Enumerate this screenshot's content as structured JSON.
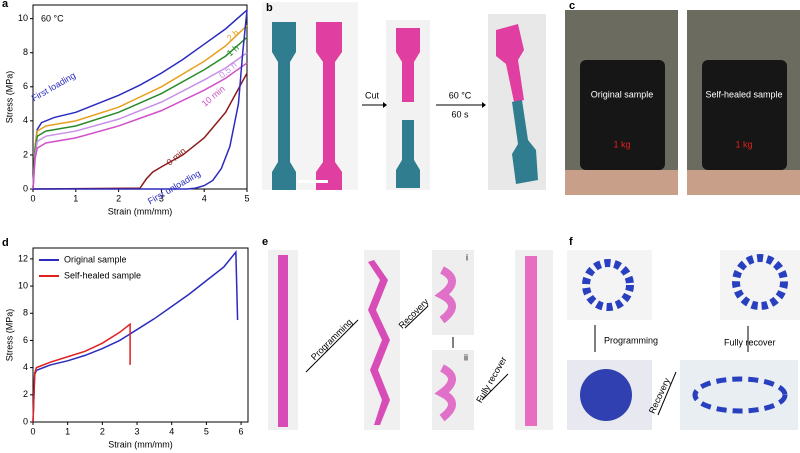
{
  "chart_data": [
    {
      "type": "line",
      "panel": "a",
      "annotation": "60 °C",
      "xlabel": "Strain (mm/mm)",
      "ylabel": "Stress (MPa)",
      "xlim": [
        0,
        5
      ],
      "ylim": [
        0,
        10.8
      ],
      "xticks": [
        0,
        1,
        2,
        3,
        4,
        5
      ],
      "yticks": [
        0,
        2,
        4,
        6,
        8,
        10
      ],
      "series": [
        {
          "name": "First loading",
          "color": "#2b2bbf",
          "x": [
            0,
            0.05,
            0.1,
            0.2,
            0.5,
            1,
            1.5,
            2,
            2.5,
            3,
            3.5,
            4,
            4.5,
            5
          ],
          "values": [
            0,
            2.5,
            3.5,
            3.9,
            4.2,
            4.5,
            5,
            5.5,
            6.1,
            6.8,
            7.6,
            8.5,
            9.4,
            10.5
          ]
        },
        {
          "name": "2 h",
          "color": "#e8a020",
          "x": [
            0,
            0.05,
            0.1,
            0.3,
            1,
            2,
            3,
            4,
            4.5,
            5
          ],
          "values": [
            0,
            2.5,
            3.4,
            3.7,
            4,
            4.8,
            6,
            7.5,
            8.4,
            9.6
          ]
        },
        {
          "name": "1 h",
          "color": "#2a8a2a",
          "x": [
            0,
            0.05,
            0.1,
            0.3,
            1,
            2,
            3,
            4,
            4.5,
            5
          ],
          "values": [
            0,
            2.3,
            3.1,
            3.4,
            3.7,
            4.5,
            5.6,
            7,
            7.8,
            8.9
          ]
        },
        {
          "name": "0.5 h",
          "color": "#c890e8",
          "x": [
            0,
            0.05,
            0.1,
            0.3,
            1,
            2,
            3,
            4,
            4.5,
            5
          ],
          "values": [
            0,
            2,
            2.8,
            3.1,
            3.4,
            4.1,
            5.1,
            6.4,
            7.1,
            8
          ]
        },
        {
          "name": "10 min",
          "color": "#d050c8",
          "x": [
            0,
            0.05,
            0.1,
            0.3,
            1,
            2,
            3,
            4,
            4.5,
            5
          ],
          "values": [
            0,
            1.8,
            2.4,
            2.7,
            3,
            3.7,
            4.6,
            5.8,
            6.5,
            7.4
          ]
        },
        {
          "name": "0 min",
          "color": "#8b1a1a",
          "x": [
            0,
            2.5,
            2.65,
            2.8,
            3,
            3.5,
            4,
            4.5,
            5
          ],
          "values": [
            0,
            0.05,
            0.6,
            1,
            1.3,
            2,
            3,
            4.5,
            6.8
          ]
        },
        {
          "name": "First unloading",
          "color": "#2b2bbf",
          "x": [
            5,
            4.9,
            4.8,
            4.6,
            4.4,
            4.2,
            4,
            3.8,
            3.6,
            3.5,
            0
          ],
          "values": [
            10.5,
            8,
            5,
            2.5,
            1.2,
            0.5,
            0.2,
            0.05,
            0,
            0,
            0
          ]
        }
      ]
    },
    {
      "type": "line",
      "panel": "d",
      "xlabel": "Strain (mm/mm)",
      "ylabel": "Stress (MPa)",
      "legend": "upper left",
      "xlim": [
        0,
        6.2
      ],
      "ylim": [
        0,
        12.8
      ],
      "xticks": [
        0,
        1,
        2,
        3,
        4,
        5,
        6
      ],
      "yticks": [
        0,
        2,
        4,
        6,
        8,
        10,
        12
      ],
      "series": [
        {
          "name": "Original sample",
          "color": "#2b2bbf",
          "x": [
            0,
            0.05,
            0.1,
            0.3,
            0.5,
            1,
            1.5,
            2,
            2.5,
            3,
            3.5,
            4,
            4.5,
            5,
            5.5,
            5.85,
            5.9
          ],
          "values": [
            0,
            3.5,
            3.8,
            4,
            4.2,
            4.5,
            4.9,
            5.4,
            6,
            6.8,
            7.6,
            8.5,
            9.4,
            10.4,
            11.4,
            12.5,
            7.5
          ]
        },
        {
          "name": "Self-healed sample",
          "color": "#e02020",
          "x": [
            0,
            0.05,
            0.1,
            0.5,
            1,
            1.5,
            2,
            2.5,
            2.8,
            2.8
          ],
          "values": [
            0,
            3.6,
            4,
            4.4,
            4.8,
            5.2,
            5.8,
            6.6,
            7.2,
            4.2
          ]
        }
      ]
    }
  ],
  "panels": {
    "b": {
      "letter": "b",
      "cut": "Cut",
      "temp": "60 °C",
      "time": "60 s"
    },
    "c": {
      "letter": "c",
      "left": "Original sample",
      "right": "Self-healed sample",
      "left_weight": "1 kg",
      "right_weight": "1 kg"
    },
    "e": {
      "letter": "e",
      "programming": "Programming",
      "recovery": "Recovery",
      "i": "i",
      "ii": "ii",
      "fully": "Fully recover"
    },
    "f": {
      "letter": "f",
      "programming": "Programming",
      "recovery": "Recovery",
      "fully": "Fully recover"
    }
  }
}
